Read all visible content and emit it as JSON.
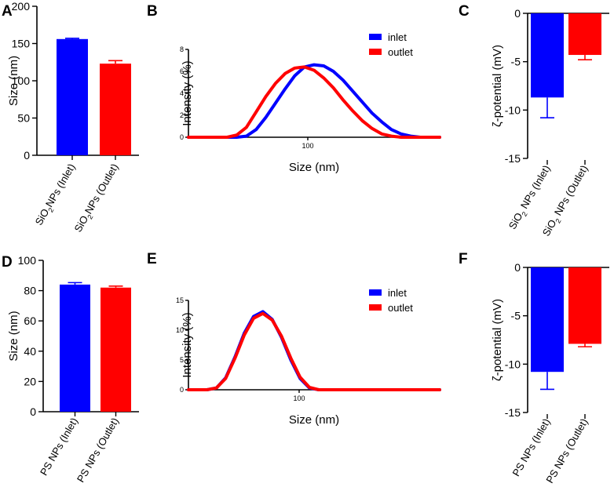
{
  "chart_data": [
    {
      "panel": "A",
      "type": "bar",
      "ylabel": "Size (nm)",
      "ylim": [
        0,
        200
      ],
      "yticks": [
        0,
        50,
        100,
        150,
        200
      ],
      "categories": [
        "SiO2NPs (Inlet)",
        "SiO2NPs (Outlet)"
      ],
      "values": [
        156,
        123
      ],
      "errors": [
        1,
        4
      ],
      "colors": [
        "#0000ff",
        "#ff0000"
      ]
    },
    {
      "panel": "B",
      "type": "line",
      "xlabel": "Size (nm)",
      "ylabel": "Intensity (%)",
      "ylim": [
        0,
        8
      ],
      "yticks": [
        0,
        2,
        4,
        6,
        8
      ],
      "xtick_label": "100",
      "series": [
        {
          "name": "inlet",
          "color": "#0000ff",
          "x": [
            1,
            2,
            3,
            4,
            5,
            6,
            7,
            8,
            9,
            10,
            11,
            12,
            13,
            14,
            15,
            16,
            17,
            18,
            19,
            20,
            21,
            22,
            23,
            24,
            25,
            26,
            27
          ],
          "values": [
            0,
            0,
            0,
            0,
            0,
            0,
            0.1,
            0.7,
            1.8,
            3.1,
            4.4,
            5.6,
            6.4,
            6.6,
            6.5,
            6.0,
            5.2,
            4.2,
            3.2,
            2.2,
            1.4,
            0.7,
            0.3,
            0.1,
            0,
            0,
            0
          ]
        },
        {
          "name": "outlet",
          "color": "#ff0000",
          "x": [
            1,
            2,
            3,
            4,
            5,
            6,
            7,
            8,
            9,
            10,
            11,
            12,
            13,
            14,
            15,
            16,
            17,
            18,
            19,
            20,
            21,
            22,
            23,
            24,
            25,
            26,
            27
          ],
          "values": [
            0,
            0,
            0,
            0,
            0,
            0.2,
            0.9,
            2.3,
            3.7,
            4.9,
            5.8,
            6.3,
            6.4,
            6.1,
            5.4,
            4.5,
            3.4,
            2.4,
            1.5,
            0.8,
            0.3,
            0.1,
            0,
            0,
            0,
            0,
            0
          ]
        }
      ]
    },
    {
      "panel": "C",
      "type": "bar",
      "ylabel": "ζ-potential (mV)",
      "ylim": [
        -15,
        0
      ],
      "yticks": [
        0,
        -5,
        -10,
        -15
      ],
      "categories": [
        "SiO2 NPs (Inlet)",
        "SiO2 NPs (Outlet)"
      ],
      "values": [
        -8.7,
        -4.3
      ],
      "errors": [
        2.1,
        0.5
      ],
      "colors": [
        "#0000ff",
        "#ff0000"
      ]
    },
    {
      "panel": "D",
      "type": "bar",
      "ylabel": "Size (nm)",
      "ylim": [
        0,
        100
      ],
      "yticks": [
        0,
        20,
        40,
        60,
        80,
        100
      ],
      "categories": [
        "PS NPs (Inlet)",
        "PS NPs (Outlet)"
      ],
      "values": [
        84,
        82
      ],
      "errors": [
        1.3,
        1
      ],
      "colors": [
        "#0000ff",
        "#ff0000"
      ]
    },
    {
      "panel": "E",
      "type": "line",
      "xlabel": "Size (nm)",
      "ylabel": "Intensity (%)",
      "ylim": [
        0,
        15
      ],
      "yticks": [
        0,
        5,
        10,
        15
      ],
      "xtick_label": "100",
      "series": [
        {
          "name": "inlet",
          "color": "#0000ff",
          "x": [
            1,
            2,
            3,
            4,
            5,
            6,
            7,
            8,
            9,
            10,
            11,
            12,
            13,
            14,
            15,
            16,
            17,
            18,
            19,
            20,
            21,
            22,
            23,
            24,
            25,
            26,
            27,
            28
          ],
          "values": [
            0,
            0,
            0,
            0.3,
            2,
            5.5,
            9.5,
            12.3,
            13.1,
            11.8,
            8.8,
            5,
            1.9,
            0.3,
            0,
            0,
            0,
            0,
            0,
            0,
            0,
            0,
            0,
            0,
            0,
            0,
            0,
            0
          ]
        },
        {
          "name": "outlet",
          "color": "#ff0000",
          "x": [
            1,
            2,
            3,
            4,
            5,
            6,
            7,
            8,
            9,
            10,
            11,
            12,
            13,
            14,
            15,
            16,
            17,
            18,
            19,
            20,
            21,
            22,
            23,
            24,
            25,
            26,
            27,
            28
          ],
          "values": [
            0,
            0,
            0,
            0.3,
            1.9,
            5.3,
            9.2,
            12,
            12.8,
            11.7,
            9,
            5.3,
            2.1,
            0.4,
            0,
            0,
            0,
            0,
            0,
            0,
            0,
            0,
            0,
            0,
            0,
            0,
            0,
            0
          ]
        }
      ]
    },
    {
      "panel": "F",
      "type": "bar",
      "ylabel": "ζ-potential (mV)",
      "ylim": [
        -15,
        0
      ],
      "yticks": [
        0,
        -5,
        -10,
        -15
      ],
      "categories": [
        "PS NPs (Inlet)",
        "PS NPs (Outlet)"
      ],
      "values": [
        -10.8,
        -7.9
      ],
      "errors": [
        1.8,
        0.3
      ],
      "colors": [
        "#0000ff",
        "#ff0000"
      ]
    }
  ]
}
